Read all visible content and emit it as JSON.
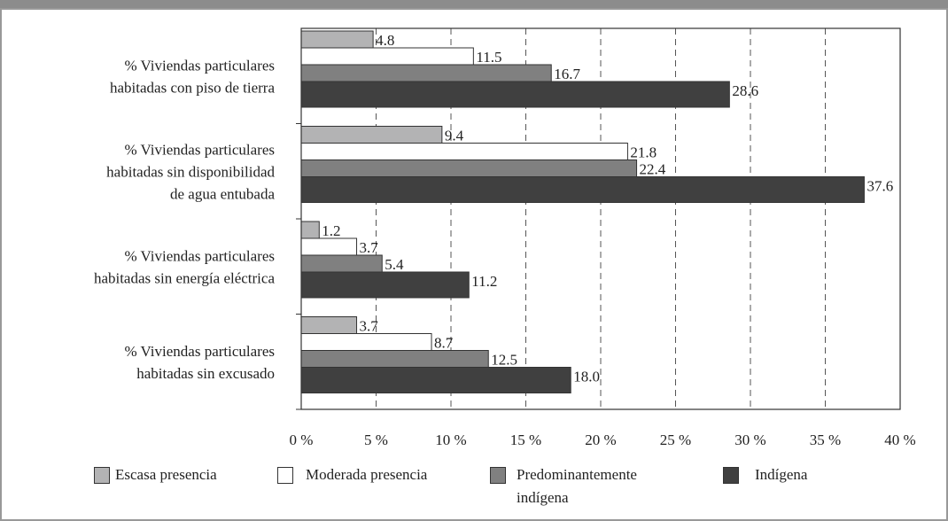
{
  "chart_data": {
    "type": "hbar",
    "categories": [
      [
        "% Viviendas particulares",
        "habitadas con piso de tierra"
      ],
      [
        "% Viviendas particulares",
        "habitadas  sin disponibilidad",
        "de agua entubada"
      ],
      [
        "% Viviendas particulares",
        "habitadas sin energía eléctrica"
      ],
      [
        "% Viviendas particulares",
        "habitadas sin excusado"
      ]
    ],
    "series": [
      {
        "name": "Escasa presencia",
        "color": "#b3b3b4",
        "values": [
          4.8,
          9.4,
          1.2,
          3.7
        ]
      },
      {
        "name": "Moderada presencia",
        "color": "#ffffff",
        "values": [
          11.5,
          21.8,
          3.7,
          8.7
        ]
      },
      {
        "name": "Predominantemente indígena",
        "color": "#808080",
        "values": [
          16.7,
          22.4,
          5.4,
          12.5
        ]
      },
      {
        "name": "Indígena",
        "color": "#404040",
        "values": [
          28.6,
          37.6,
          11.2,
          18
        ],
        "value_labels": [
          "28.6",
          "37.6",
          "11.2",
          "18.0"
        ]
      }
    ],
    "xlim": [
      0,
      40
    ],
    "xticks": [
      {
        "value": 0,
        "label": "0 %"
      },
      {
        "value": 5,
        "label": "5 %"
      },
      {
        "value": 10,
        "label": "10 %"
      },
      {
        "value": 15,
        "label": "15 %"
      },
      {
        "value": 20,
        "label": "20 %"
      },
      {
        "value": 25,
        "label": "25 %"
      },
      {
        "value": 30,
        "label": "30 %"
      },
      {
        "value": 35,
        "label": "35 %"
      },
      {
        "value": 40,
        "label": "40 %"
      }
    ],
    "grid": true
  }
}
